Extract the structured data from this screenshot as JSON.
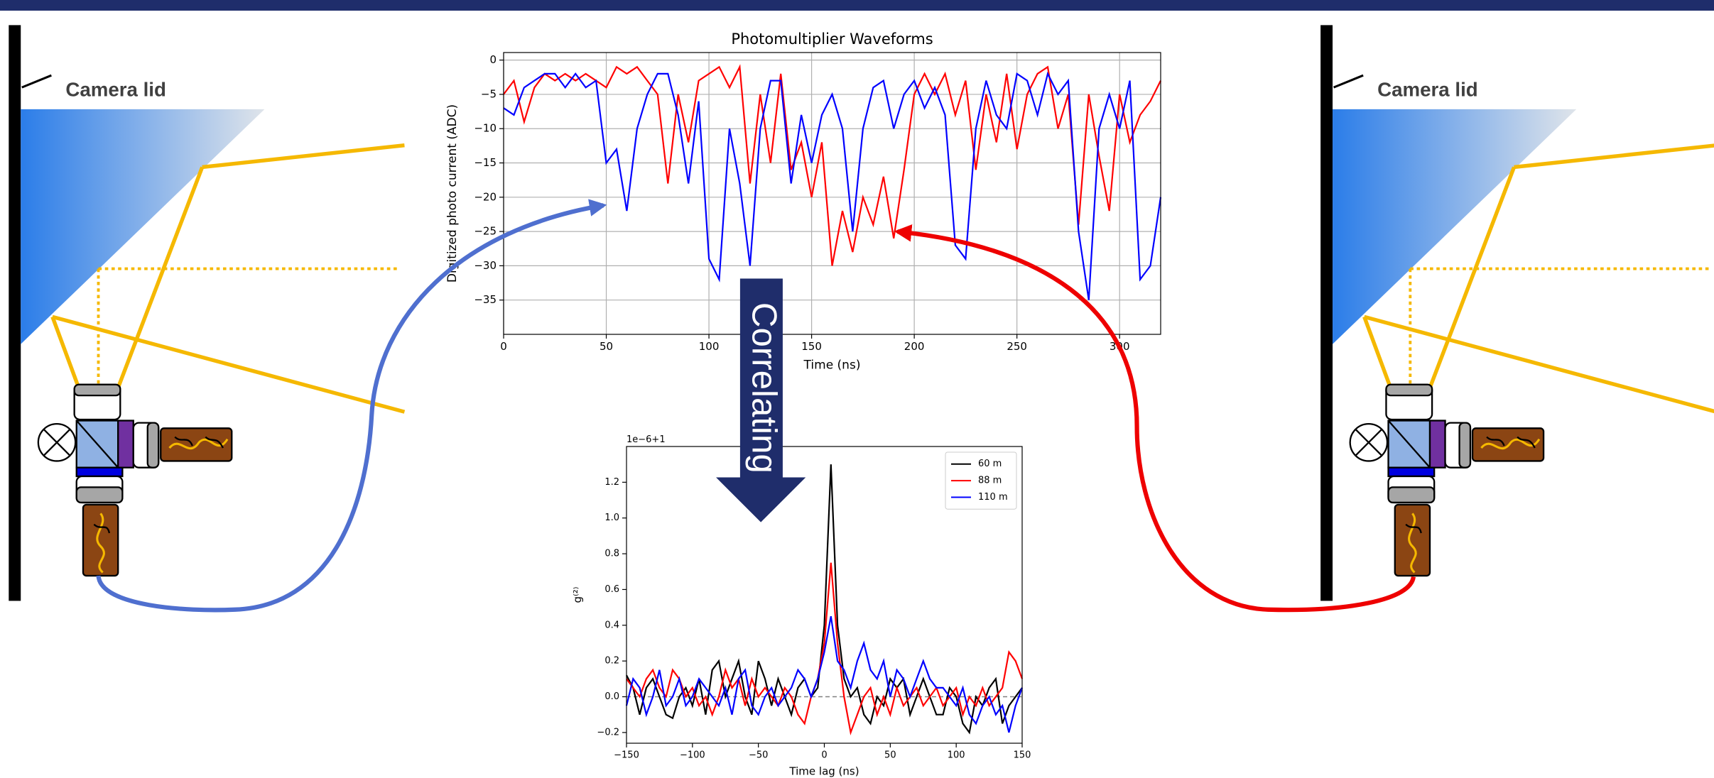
{
  "diagram": {
    "labels": [
      "Camera lid",
      "Camera lid"
    ],
    "arrow_label": "Correlating"
  },
  "chart_data": [
    {
      "type": "line",
      "title": "Photomultiplier Waveforms",
      "xlabel": "Time (ns)",
      "ylabel": "Digitized photo current (ADC)",
      "x": [
        0,
        5,
        10,
        15,
        20,
        25,
        30,
        35,
        40,
        45,
        50,
        55,
        60,
        65,
        70,
        75,
        80,
        85,
        90,
        95,
        100,
        105,
        110,
        115,
        120,
        125,
        130,
        135,
        140,
        145,
        150,
        155,
        160,
        165,
        170,
        175,
        180,
        185,
        190,
        195,
        200,
        205,
        210,
        215,
        220,
        225,
        230,
        235,
        240,
        245,
        250,
        255,
        260,
        265,
        270,
        275,
        280,
        285,
        290,
        295,
        300,
        305,
        310,
        315,
        320
      ],
      "series": [
        {
          "color": "#ff0000",
          "values": [
            -5,
            -3,
            -9,
            -4,
            -2,
            -3,
            -2,
            -3,
            -2,
            -3,
            -4,
            -1,
            -2,
            -1,
            -3,
            -5,
            -18,
            -5,
            -12,
            -3,
            -2,
            -1,
            -4,
            -1,
            -18,
            -5,
            -15,
            -2,
            -16,
            -12,
            -20,
            -12,
            -30,
            -22,
            -28,
            -20,
            -24,
            -17,
            -26,
            -16,
            -5,
            -2,
            -5,
            -2,
            -8,
            -3,
            -16,
            -5,
            -12,
            -2,
            -13,
            -5,
            -2,
            -1,
            -10,
            -5,
            -24,
            -5,
            -14,
            -22,
            -5,
            -12,
            -8,
            -6,
            -3
          ]
        },
        {
          "color": "#0000ff",
          "values": [
            -7,
            -8,
            -4,
            -3,
            -2,
            -2,
            -4,
            -2,
            -4,
            -3,
            -15,
            -13,
            -22,
            -10,
            -5,
            -2,
            -2,
            -8,
            -18,
            -6,
            -29,
            -32,
            -10,
            -18,
            -30,
            -10,
            -3,
            -3,
            -18,
            -8,
            -15,
            -8,
            -5,
            -10,
            -25,
            -10,
            -4,
            -3,
            -10,
            -5,
            -3,
            -7,
            -4,
            -8,
            -27,
            -29,
            -10,
            -3,
            -8,
            -10,
            -2,
            -3,
            -8,
            -2,
            -5,
            -3,
            -25,
            -35,
            -10,
            -5,
            -10,
            -3,
            -32,
            -30,
            -20
          ]
        }
      ],
      "xlim": [
        0,
        320
      ],
      "xticks": [
        0,
        50,
        100,
        150,
        200,
        250,
        300
      ],
      "ylim": [
        -40,
        1.1
      ],
      "yticks": [
        0,
        {
          "value": -5,
          "label": "−5"
        },
        {
          "value": -10,
          "label": "−10"
        },
        {
          "value": -15,
          "label": "−15"
        },
        {
          "value": -20,
          "label": "−20"
        },
        {
          "value": -25,
          "label": "−25"
        },
        {
          "value": -30,
          "label": "−30"
        },
        {
          "value": -35,
          "label": "−35"
        }
      ],
      "grid": true
    },
    {
      "type": "line",
      "xlabel": "Time lag (ns)",
      "ylabel": "g⁽²⁾",
      "offset_label": "1e−6+1",
      "x": [
        -150,
        -145,
        -140,
        -135,
        -130,
        -125,
        -120,
        -115,
        -110,
        -105,
        -100,
        -95,
        -90,
        -85,
        -80,
        -75,
        -70,
        -65,
        -60,
        -55,
        -50,
        -45,
        -40,
        -35,
        -30,
        -25,
        -20,
        -15,
        -10,
        -5,
        0,
        5,
        10,
        15,
        20,
        25,
        30,
        35,
        40,
        45,
        50,
        55,
        60,
        65,
        70,
        75,
        80,
        85,
        90,
        95,
        100,
        105,
        110,
        115,
        120,
        125,
        130,
        135,
        140,
        145,
        150
      ],
      "series": [
        {
          "name": "60 m",
          "color": "#000000",
          "values": [
            0.12,
            0.05,
            -0.1,
            0.05,
            0.1,
            0.0,
            -0.1,
            -0.12,
            0.0,
            0.05,
            -0.05,
            0.1,
            -0.1,
            0.15,
            0.2,
            0.0,
            0.1,
            0.2,
            0.0,
            -0.1,
            0.2,
            0.1,
            -0.05,
            0.1,
            0.0,
            -0.1,
            0.05,
            0.1,
            0.0,
            0.05,
            0.4,
            1.3,
            0.4,
            0.1,
            0.0,
            0.05,
            -0.1,
            -0.15,
            0.0,
            -0.05,
            0.1,
            0.05,
            0.1,
            -0.1,
            0.0,
            0.1,
            0.0,
            -0.1,
            -0.1,
            0.05,
            0.0,
            -0.15,
            -0.2,
            0.0,
            -0.05,
            0.05,
            0.1,
            -0.15,
            -0.05,
            0.0,
            0.05
          ]
        },
        {
          "name": "88 m",
          "color": "#ff0000",
          "values": [
            0.1,
            0.05,
            0.0,
            0.1,
            0.15,
            0.05,
            0.0,
            0.15,
            0.1,
            0.0,
            0.05,
            -0.05,
            0.0,
            -0.1,
            0.0,
            0.15,
            0.05,
            0.1,
            -0.05,
            0.1,
            0.0,
            0.05,
            0.0,
            -0.05,
            0.05,
            0.0,
            -0.1,
            -0.15,
            0.0,
            0.1,
            0.3,
            0.75,
            0.3,
            0.0,
            -0.2,
            -0.1,
            0.0,
            0.05,
            -0.1,
            0.0,
            -0.1,
            0.05,
            -0.05,
            0.0,
            0.05,
            -0.05,
            0.0,
            0.05,
            -0.05,
            0.0,
            0.05,
            -0.1,
            0.0,
            -0.05,
            0.05,
            -0.05,
            0.0,
            0.05,
            0.25,
            0.2,
            0.1
          ]
        },
        {
          "name": "110 m",
          "color": "#0000ff",
          "values": [
            -0.05,
            0.1,
            0.05,
            -0.1,
            0.0,
            0.15,
            -0.05,
            0.0,
            0.1,
            -0.05,
            0.0,
            0.1,
            0.05,
            0.0,
            -0.05,
            0.05,
            -0.1,
            0.1,
            0.15,
            -0.05,
            -0.1,
            0.0,
            0.05,
            -0.05,
            0.0,
            0.05,
            0.15,
            0.1,
            0.0,
            0.1,
            0.25,
            0.45,
            0.2,
            0.15,
            0.05,
            0.2,
            0.3,
            0.15,
            0.1,
            0.2,
            0.0,
            0.15,
            0.1,
            0.0,
            0.1,
            0.2,
            0.1,
            0.05,
            0.05,
            0.0,
            -0.05,
            0.05,
            -0.1,
            -0.15,
            -0.05,
            0.0,
            -0.1,
            -0.05,
            -0.2,
            -0.05,
            0.05
          ]
        }
      ],
      "xlim": [
        -150,
        150
      ],
      "xticks": [
        {
          "value": -150,
          "label": "−150"
        },
        {
          "value": -100,
          "label": "−100"
        },
        {
          "value": -50,
          "label": "−50"
        },
        0,
        50,
        100,
        150
      ],
      "ylim": [
        -0.26,
        1.4
      ],
      "yticks": [
        {
          "value": -0.2,
          "label": "−0.2"
        },
        {
          "value": 0,
          "label": "0.0"
        },
        0.2,
        0.4,
        0.6,
        0.8,
        {
          "value": 1,
          "label": "1.0"
        },
        1.2
      ],
      "reference_line": 0,
      "grid": false,
      "legend": "upper right"
    }
  ]
}
